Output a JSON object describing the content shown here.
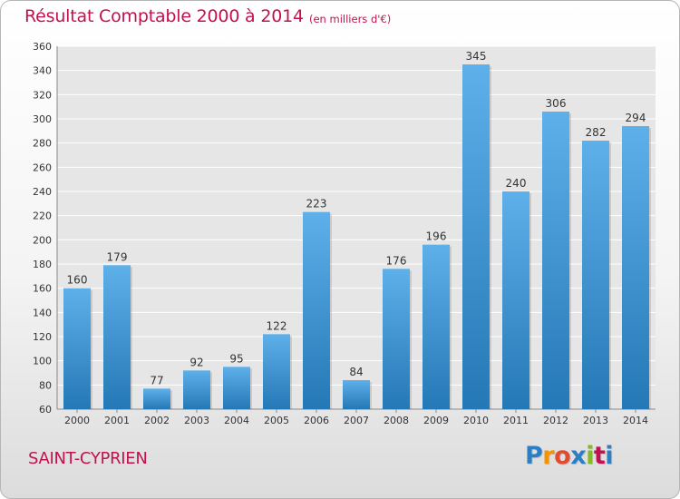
{
  "header": {
    "title": "Résultat Comptable 2000 à 2014",
    "subtitle": "(en milliers d'€)"
  },
  "footer": {
    "commune": "SAINT-CYPRIEN",
    "brand": [
      "P",
      "r",
      "o",
      "x",
      "i",
      "t",
      "i"
    ]
  },
  "colors": {
    "title": "#c1124f",
    "bar_top": "#5eb0ea",
    "bar_bottom": "#2478b5",
    "grid": "#ffffff",
    "plot_bg": "#e6e6e6"
  },
  "chart_data": {
    "type": "bar",
    "title": "Résultat Comptable 2000 à 2014",
    "subtitle": "(en milliers d'€)",
    "xlabel": "",
    "ylabel": "",
    "categories": [
      "2000",
      "2001",
      "2002",
      "2003",
      "2004",
      "2005",
      "2006",
      "2007",
      "2008",
      "2009",
      "2010",
      "2011",
      "2012",
      "2013",
      "2014"
    ],
    "values": [
      160,
      179,
      77,
      92,
      95,
      122,
      223,
      84,
      176,
      196,
      345,
      240,
      306,
      282,
      294
    ],
    "ylim": [
      60,
      360
    ],
    "yticks": [
      60,
      80,
      100,
      120,
      140,
      160,
      180,
      200,
      220,
      240,
      260,
      280,
      300,
      320,
      340,
      360
    ],
    "grid": true,
    "legend": "none"
  }
}
